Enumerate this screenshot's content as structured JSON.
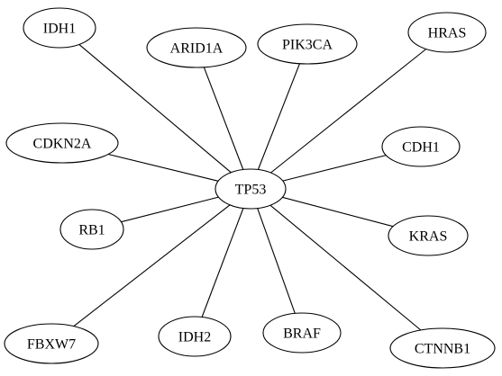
{
  "diagram": {
    "type": "undirected-star-graph",
    "center": "TP53",
    "nodes": [
      {
        "id": "TP53",
        "label": "TP53"
      },
      {
        "id": "IDH1",
        "label": "IDH1"
      },
      {
        "id": "ARID1A",
        "label": "ARID1A"
      },
      {
        "id": "PIK3CA",
        "label": "PIK3CA"
      },
      {
        "id": "HRAS",
        "label": "HRAS"
      },
      {
        "id": "CDKN2A",
        "label": "CDKN2A"
      },
      {
        "id": "CDH1",
        "label": "CDH1"
      },
      {
        "id": "RB1",
        "label": "RB1"
      },
      {
        "id": "KRAS",
        "label": "KRAS"
      },
      {
        "id": "FBXW7",
        "label": "FBXW7"
      },
      {
        "id": "IDH2",
        "label": "IDH2"
      },
      {
        "id": "BRAF",
        "label": "BRAF"
      },
      {
        "id": "CTNNB1",
        "label": "CTNNB1"
      }
    ],
    "edges": [
      {
        "from": "TP53",
        "to": "IDH1"
      },
      {
        "from": "TP53",
        "to": "ARID1A"
      },
      {
        "from": "TP53",
        "to": "PIK3CA"
      },
      {
        "from": "TP53",
        "to": "HRAS"
      },
      {
        "from": "TP53",
        "to": "CDKN2A"
      },
      {
        "from": "TP53",
        "to": "CDH1"
      },
      {
        "from": "TP53",
        "to": "RB1"
      },
      {
        "from": "TP53",
        "to": "KRAS"
      },
      {
        "from": "TP53",
        "to": "FBXW7"
      },
      {
        "from": "TP53",
        "to": "IDH2"
      },
      {
        "from": "TP53",
        "to": "BRAF"
      },
      {
        "from": "TP53",
        "to": "CTNNB1"
      }
    ]
  }
}
